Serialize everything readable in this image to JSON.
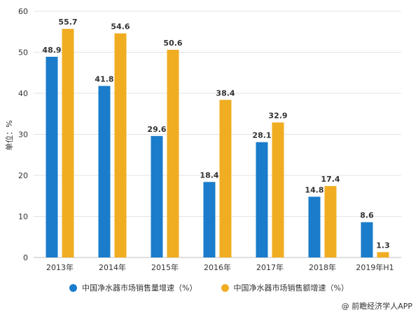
{
  "chart_data": {
    "type": "bar",
    "ylabel": "单位：%",
    "ylim": [
      0,
      60
    ],
    "yticks": [
      0,
      10,
      20,
      30,
      40,
      50,
      60
    ],
    "grid": true,
    "legend_position": "bottom",
    "categories": [
      "2013年",
      "2014年",
      "2015年",
      "2016年",
      "2017年",
      "2018年",
      "2019年H1"
    ],
    "series": [
      {
        "name": "中国净水器市场销售量增速（%）",
        "color": "#1a7ccb",
        "values": [
          48.9,
          41.8,
          29.6,
          18.4,
          28.1,
          14.8,
          8.6
        ]
      },
      {
        "name": "中国净水器市场销售额增速（%）",
        "color": "#f0ad22",
        "values": [
          55.7,
          54.6,
          50.6,
          38.4,
          32.9,
          17.4,
          1.3
        ]
      }
    ]
  },
  "credit": "@ 前瞻经济学人APP"
}
